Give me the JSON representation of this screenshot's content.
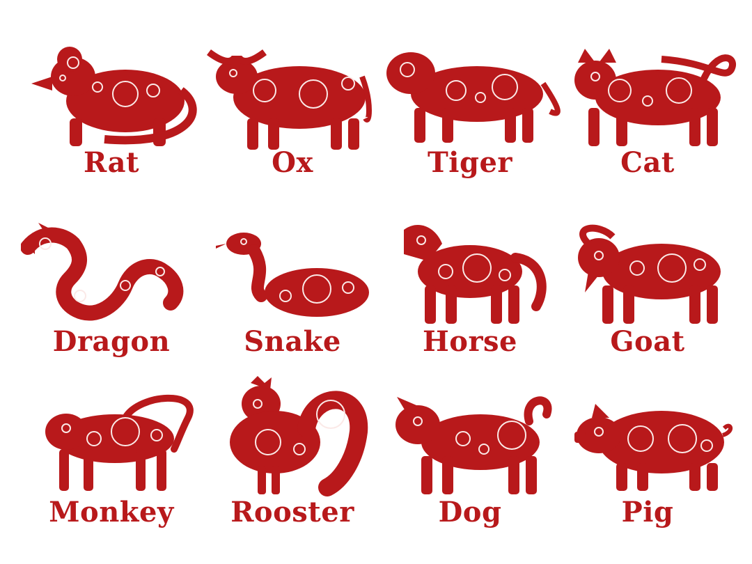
{
  "theme": {
    "ink": "#b8191b",
    "paper": "#ffffff",
    "pattern": "#fbe9e7"
  },
  "animals": [
    {
      "name": "Rat",
      "icon": "rat-icon"
    },
    {
      "name": "Ox",
      "icon": "ox-icon"
    },
    {
      "name": "Tiger",
      "icon": "tiger-icon"
    },
    {
      "name": "Cat",
      "icon": "cat-icon"
    },
    {
      "name": "Dragon",
      "icon": "dragon-icon"
    },
    {
      "name": "Snake",
      "icon": "snake-icon"
    },
    {
      "name": "Horse",
      "icon": "horse-icon"
    },
    {
      "name": "Goat",
      "icon": "goat-icon"
    },
    {
      "name": "Monkey",
      "icon": "monkey-icon"
    },
    {
      "name": "Rooster",
      "icon": "rooster-icon"
    },
    {
      "name": "Dog",
      "icon": "dog-icon"
    },
    {
      "name": "Pig",
      "icon": "pig-icon"
    }
  ]
}
